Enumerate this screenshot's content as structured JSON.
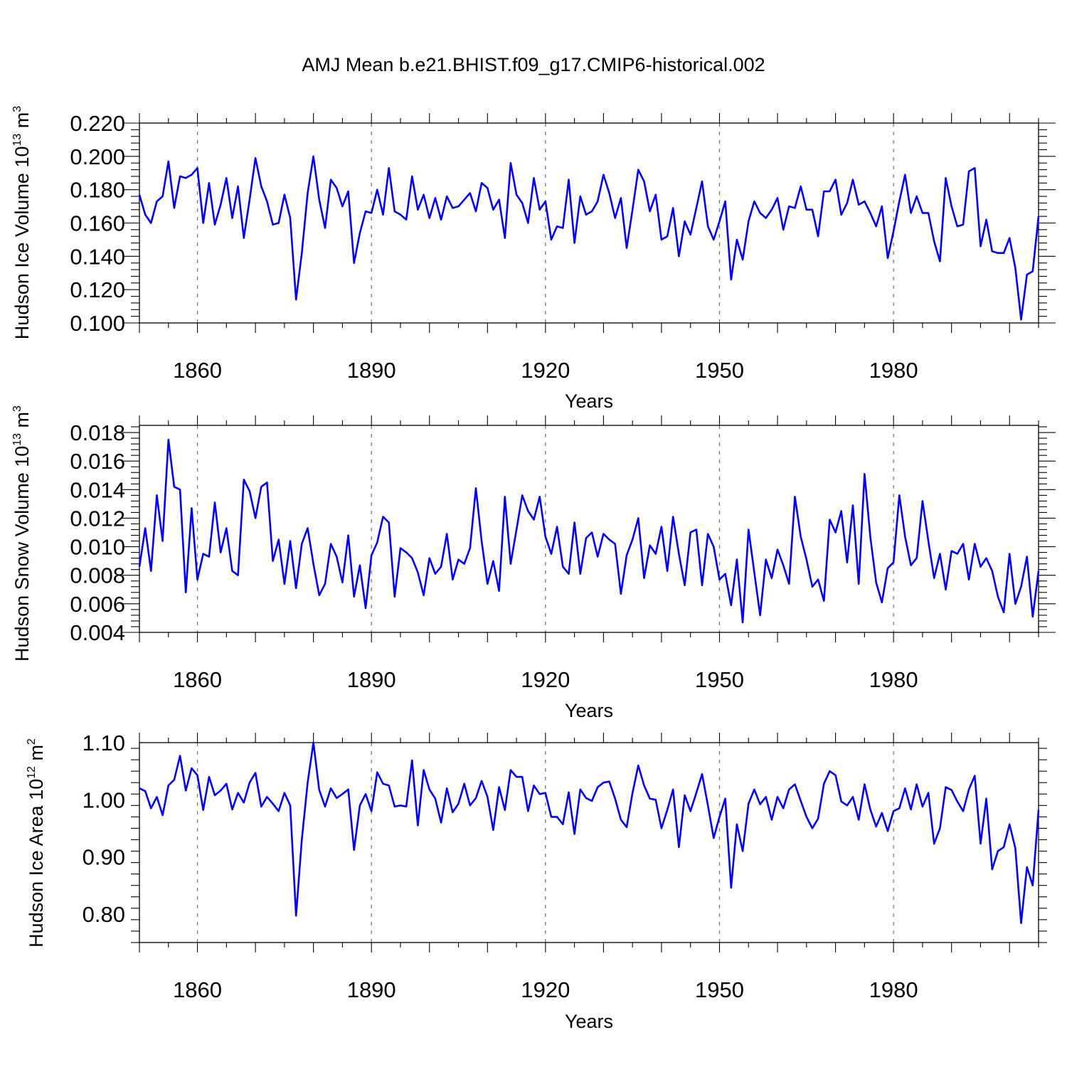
{
  "title": "AMJ Mean b.e21.BHIST.f09_g17.CMIP6-historical.002",
  "line_color": "#0000ff",
  "chart_data": [
    {
      "type": "line",
      "name": "ice-volume",
      "ylabel": "Hudson Ice Volume 10",
      "ylabel_exp": "13",
      "ylabel_unit": " m",
      "ylabel_unit_exp": "3",
      "xlabel": "Years",
      "xlim": [
        1850,
        2005
      ],
      "ylim": [
        0.1,
        0.22
      ],
      "xticks": [
        "1860",
        "1890",
        "1920",
        "1950",
        "1980"
      ],
      "yticks": [
        "0.220",
        "0.200",
        "0.180",
        "0.160",
        "0.140",
        "0.120",
        "0.100"
      ],
      "ytick_values": [
        0.22,
        0.2,
        0.18,
        0.16,
        0.14,
        0.12,
        0.1
      ],
      "x_start": 1850,
      "values": [
        0.177,
        0.165,
        0.16,
        0.173,
        0.176,
        0.197,
        0.169,
        0.188,
        0.187,
        0.189,
        0.193,
        0.16,
        0.184,
        0.159,
        0.171,
        0.187,
        0.163,
        0.182,
        0.151,
        0.174,
        0.199,
        0.182,
        0.173,
        0.159,
        0.16,
        0.177,
        0.163,
        0.114,
        0.142,
        0.178,
        0.2,
        0.174,
        0.157,
        0.186,
        0.181,
        0.17,
        0.179,
        0.136,
        0.154,
        0.167,
        0.166,
        0.18,
        0.165,
        0.193,
        0.167,
        0.165,
        0.162,
        0.188,
        0.168,
        0.177,
        0.163,
        0.175,
        0.162,
        0.176,
        0.169,
        0.17,
        0.174,
        0.178,
        0.167,
        0.184,
        0.181,
        0.168,
        0.174,
        0.151,
        0.196,
        0.177,
        0.172,
        0.16,
        0.187,
        0.168,
        0.173,
        0.15,
        0.158,
        0.157,
        0.186,
        0.148,
        0.176,
        0.165,
        0.167,
        0.173,
        0.189,
        0.178,
        0.163,
        0.175,
        0.145,
        0.168,
        0.192,
        0.185,
        0.167,
        0.177,
        0.15,
        0.152,
        0.169,
        0.14,
        0.161,
        0.153,
        0.169,
        0.185,
        0.158,
        0.15,
        0.161,
        0.173,
        0.126,
        0.15,
        0.138,
        0.161,
        0.173,
        0.166,
        0.163,
        0.168,
        0.175,
        0.156,
        0.17,
        0.169,
        0.182,
        0.168,
        0.168,
        0.152,
        0.179,
        0.179,
        0.186,
        0.165,
        0.172,
        0.186,
        0.171,
        0.173,
        0.166,
        0.158,
        0.17,
        0.139,
        0.155,
        0.173,
        0.189,
        0.166,
        0.176,
        0.166,
        0.166,
        0.149,
        0.137,
        0.187,
        0.17,
        0.158,
        0.159,
        0.191,
        0.193,
        0.146,
        0.162,
        0.143,
        0.142,
        0.142,
        0.151,
        0.133,
        0.102,
        0.129,
        0.131,
        0.164
      ]
    },
    {
      "type": "line",
      "name": "snow-volume",
      "ylabel": "Hudson Snow Volume 10",
      "ylabel_exp": "13",
      "ylabel_unit": " m",
      "ylabel_unit_exp": "3",
      "xlabel": "Years",
      "xlim": [
        1850,
        2005
      ],
      "ylim": [
        0.004,
        0.0185
      ],
      "xticks": [
        "1860",
        "1890",
        "1920",
        "1950",
        "1980"
      ],
      "yticks": [
        "0.018",
        "0.016",
        "0.014",
        "0.012",
        "0.010",
        "0.008",
        "0.006",
        "0.004"
      ],
      "ytick_values": [
        0.018,
        0.016,
        0.014,
        0.012,
        0.01,
        0.008,
        0.006,
        0.004
      ],
      "x_start": 1850,
      "values": [
        0.0086,
        0.0113,
        0.0083,
        0.0136,
        0.0104,
        0.0175,
        0.0142,
        0.014,
        0.0068,
        0.0127,
        0.0077,
        0.0095,
        0.0093,
        0.0131,
        0.0096,
        0.0113,
        0.0083,
        0.008,
        0.0147,
        0.0139,
        0.012,
        0.0142,
        0.0145,
        0.009,
        0.0105,
        0.0074,
        0.0104,
        0.0071,
        0.0102,
        0.0113,
        0.0088,
        0.0066,
        0.0074,
        0.0102,
        0.0093,
        0.0075,
        0.0108,
        0.0065,
        0.0087,
        0.0057,
        0.0094,
        0.0103,
        0.0121,
        0.0117,
        0.0065,
        0.0099,
        0.0096,
        0.0092,
        0.0082,
        0.0066,
        0.0092,
        0.0081,
        0.0086,
        0.0109,
        0.0077,
        0.0091,
        0.0088,
        0.0099,
        0.0141,
        0.0104,
        0.0074,
        0.009,
        0.0069,
        0.0135,
        0.0088,
        0.0112,
        0.0136,
        0.0125,
        0.0119,
        0.0135,
        0.0107,
        0.0095,
        0.0114,
        0.0086,
        0.0081,
        0.0117,
        0.0081,
        0.0106,
        0.011,
        0.0093,
        0.0109,
        0.0105,
        0.0102,
        0.0067,
        0.0094,
        0.0105,
        0.012,
        0.0078,
        0.0101,
        0.0095,
        0.0114,
        0.0083,
        0.0121,
        0.0095,
        0.0073,
        0.011,
        0.0112,
        0.0073,
        0.0109,
        0.01,
        0.0077,
        0.0081,
        0.0059,
        0.0091,
        0.0047,
        0.0112,
        0.0082,
        0.0052,
        0.0091,
        0.0078,
        0.0098,
        0.0087,
        0.0074,
        0.0135,
        0.0107,
        0.0091,
        0.0072,
        0.0077,
        0.0062,
        0.0119,
        0.011,
        0.0125,
        0.0089,
        0.0129,
        0.0074,
        0.0151,
        0.0107,
        0.0075,
        0.0061,
        0.0085,
        0.0089,
        0.0136,
        0.0107,
        0.0087,
        0.0092,
        0.0132,
        0.0104,
        0.0078,
        0.0095,
        0.007,
        0.0097,
        0.0095,
        0.0102,
        0.0077,
        0.0102,
        0.0086,
        0.0092,
        0.0083,
        0.0065,
        0.0054,
        0.0095,
        0.006,
        0.0072,
        0.0093,
        0.0051,
        0.0083
      ]
    },
    {
      "type": "line",
      "name": "ice-area",
      "ylabel": "Hudson Ice Area 10",
      "ylabel_exp": "12",
      "ylabel_unit": " m",
      "ylabel_unit_exp": "2",
      "xlabel": "Years",
      "xlim": [
        1850,
        2005
      ],
      "ylim": [
        0.75,
        1.1
      ],
      "xticks": [
        "1860",
        "1890",
        "1920",
        "1950",
        "1980"
      ],
      "yticks": [
        "1.10",
        "1.00",
        "0.90",
        "0.80"
      ],
      "ytick_values": [
        1.1,
        1.0,
        0.9,
        0.8
      ],
      "x_start": 1850,
      "values": [
        1.02,
        1.015,
        0.985,
        1.005,
        0.973,
        1.025,
        1.035,
        1.077,
        1.016,
        1.055,
        1.043,
        0.982,
        1.04,
        1.008,
        1.016,
        1.028,
        0.983,
        1.012,
        0.995,
        1.03,
        1.047,
        0.988,
        1.005,
        0.993,
        0.98,
        1.012,
        0.99,
        0.797,
        0.93,
        1.03,
        1.1,
        1.017,
        0.988,
        1.02,
        1.003,
        1.01,
        1.018,
        0.912,
        0.99,
        1.01,
        0.98,
        1.048,
        1.028,
        1.025,
        0.988,
        0.99,
        0.988,
        1.069,
        0.955,
        1.052,
        1.018,
        1.002,
        0.96,
        1.02,
        0.978,
        0.993,
        1.028,
        0.99,
        1.003,
        1.033,
        1.005,
        0.947,
        1.022,
        0.982,
        1.052,
        1.04,
        1.04,
        0.98,
        1.025,
        1.01,
        1.012,
        0.97,
        0.97,
        0.957,
        1.013,
        0.94,
        1.018,
        1.003,
        0.998,
        1.022,
        1.03,
        1.032,
        1.002,
        0.965,
        0.952,
        1.012,
        1.06,
        1.025,
        1.002,
        1.0,
        0.95,
        0.982,
        1.018,
        0.917,
        1.008,
        0.98,
        1.012,
        1.045,
        0.99,
        0.933,
        0.97,
        1.002,
        0.846,
        0.957,
        0.91,
        0.993,
        1.018,
        0.992,
        1.005,
        0.965,
        1.005,
        0.985,
        1.018,
        1.027,
        0.998,
        0.97,
        0.95,
        0.967,
        1.028,
        1.05,
        1.043,
        0.997,
        0.99,
        1.005,
        0.965,
        1.027,
        0.983,
        0.953,
        0.977,
        0.945,
        0.98,
        0.985,
        1.02,
        0.983,
        1.027,
        0.988,
        1.012,
        0.923,
        0.95,
        1.022,
        1.017,
        0.997,
        0.98,
        1.018,
        1.042,
        0.923,
        1.002,
        0.878,
        0.91,
        0.917,
        0.957,
        0.915,
        0.784,
        0.882,
        0.85,
        0.982
      ]
    }
  ]
}
